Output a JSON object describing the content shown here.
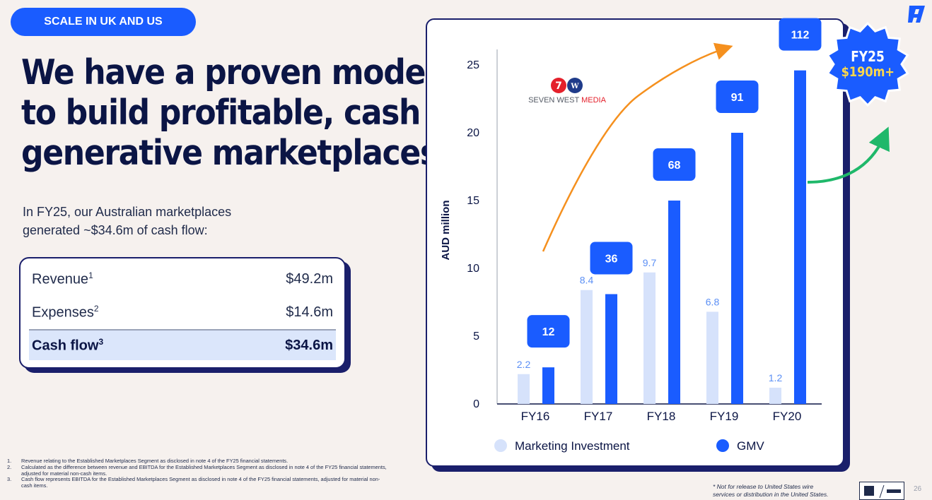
{
  "section_tag": "SCALE IN UK AND US",
  "headline": [
    "We have a proven model",
    "to build profitable, cash",
    "generative marketplaces"
  ],
  "intro": [
    "In FY25, our Australian marketplaces",
    "generated ~$34.6m of cash flow:"
  ],
  "cash_table": {
    "rows": [
      {
        "label": "Revenue",
        "sup": "1",
        "value": "$49.2m"
      },
      {
        "label": "Expenses",
        "sup": "2",
        "value": "$14.6m"
      },
      {
        "label": "Cash flow",
        "sup": "3",
        "value": "$34.6m"
      }
    ]
  },
  "footnotes": [
    {
      "num": "1.",
      "text": "Revenue relating to the Established Marketplaces Segment as disclosed in note 4 of the FY25 financial statements."
    },
    {
      "num": "2.",
      "text": "Calculated as the difference between revenue and EBITDA for the Established Marketplaces Segment as disclosed in note 4 of the FY25 financial statements, adjusted for material non-cash items."
    },
    {
      "num": "3.",
      "text": "Cash flow represents EBITDA for the Established Marketplaces Segment as disclosed in note 4 of the FY25 financial statements, adjusted for material non-cash items."
    }
  ],
  "badge": {
    "line1": "FY25",
    "line2": "$190m+"
  },
  "media_logo_text": {
    "main": "SEVEN WEST ",
    "accent": "MEDIA"
  },
  "disclaimer": [
    "* Not for release to United States wire",
    "services or distribution in the United States."
  ],
  "page_number": "26",
  "colors": {
    "accent": "#1a5cff",
    "navy": "#0b1545",
    "light_bar": "#d6e2fb",
    "orange": "#f5901e",
    "green": "#1fb86a"
  },
  "chart_data": {
    "type": "bar",
    "ylabel": "AUD million",
    "ylim": [
      0,
      25
    ],
    "yticks": [
      0,
      5,
      10,
      15,
      20,
      25
    ],
    "categories": [
      "FY16",
      "FY17",
      "FY18",
      "FY19",
      "FY20"
    ],
    "series": [
      {
        "name": "Marketing Investment",
        "values": [
          2.2,
          8.4,
          9.7,
          6.8,
          1.2
        ],
        "labels": [
          "2.2",
          "8.4",
          "9.7",
          "6.8",
          "1.2"
        ]
      },
      {
        "name": "GMV",
        "values": [
          2.7,
          8.1,
          15.0,
          20.0,
          24.6
        ],
        "labels": [
          "12",
          "36",
          "68",
          "91",
          "112"
        ]
      }
    ],
    "legend": [
      "Marketing Investment",
      "GMV"
    ]
  }
}
